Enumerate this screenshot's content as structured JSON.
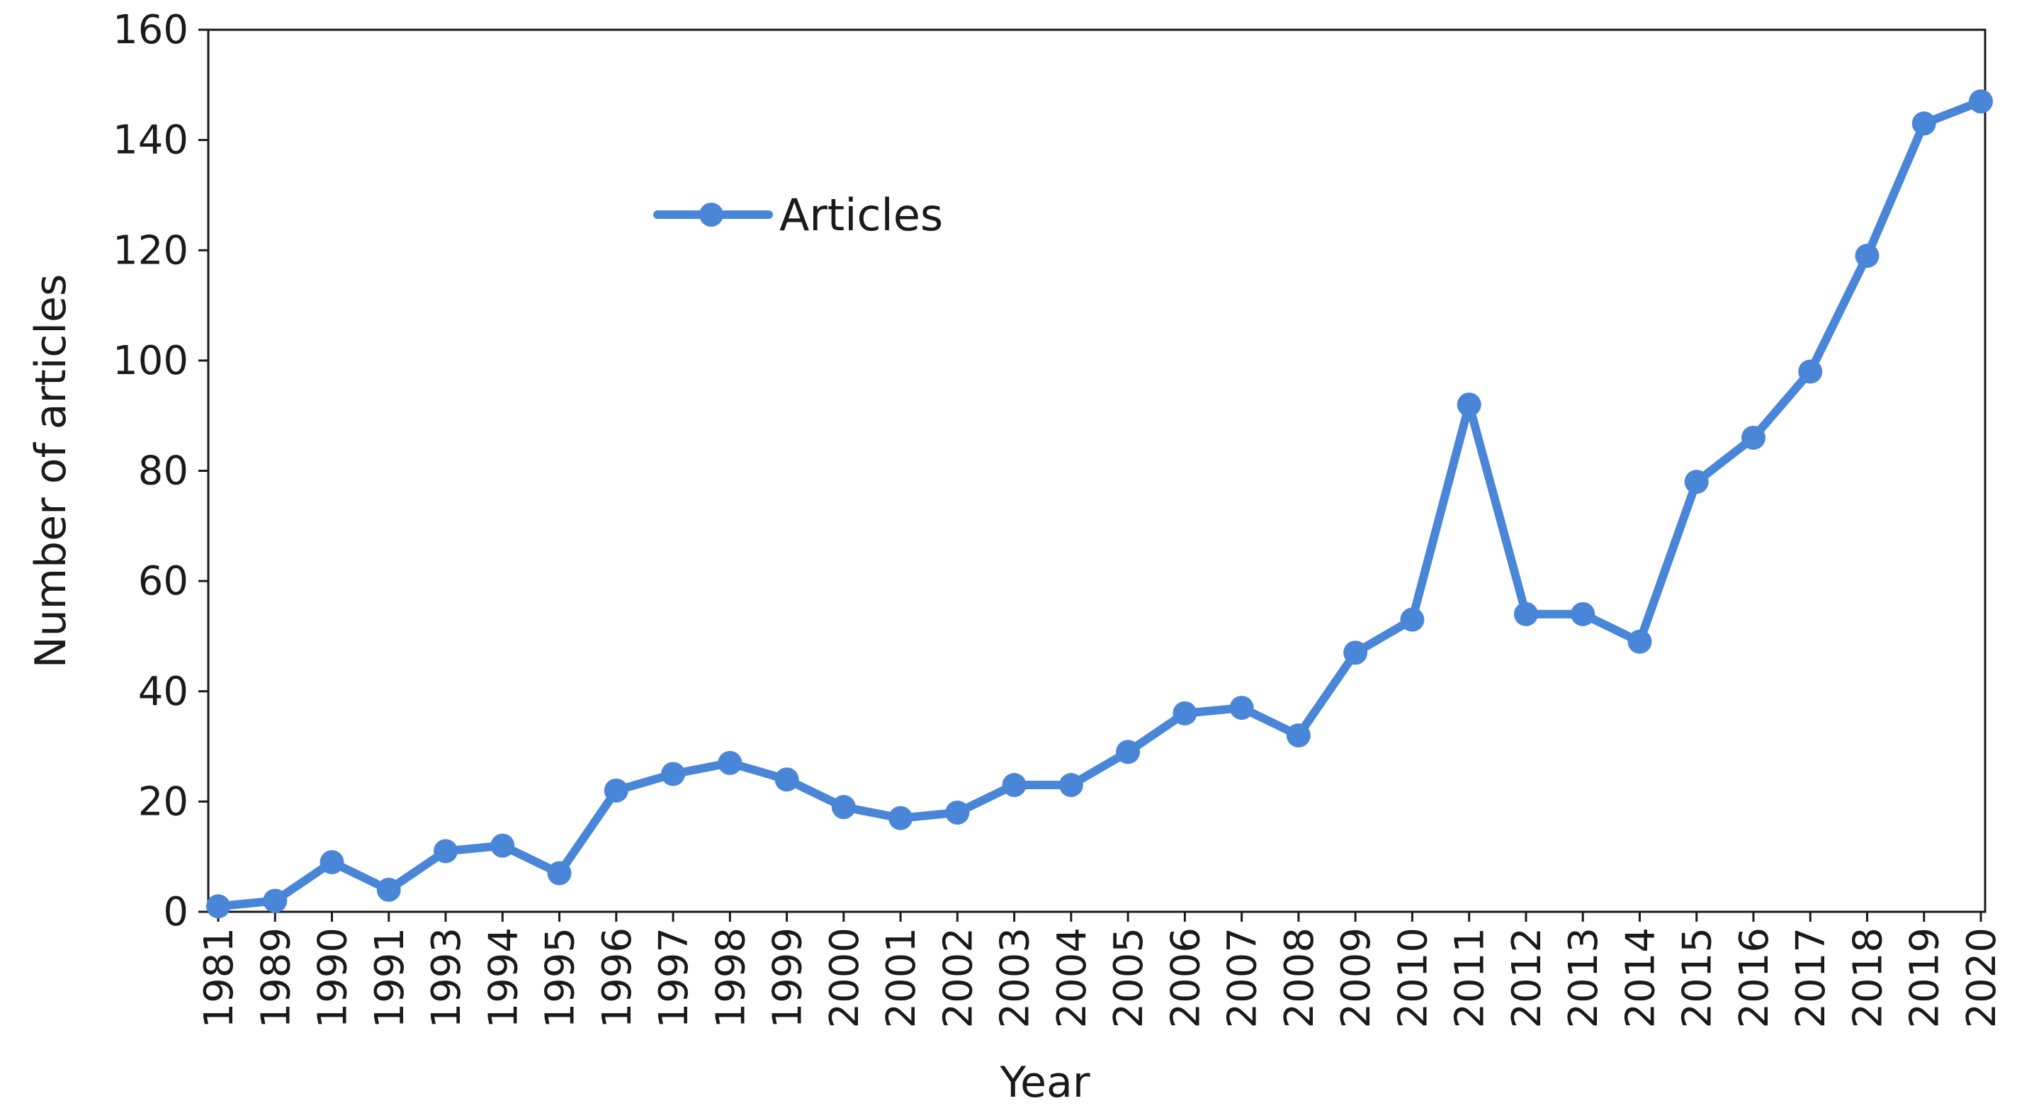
{
  "chart_data": {
    "type": "line",
    "title": "",
    "xlabel": "Year",
    "ylabel": "Number of articles",
    "ylim": [
      0,
      160
    ],
    "yticks": [
      0,
      20,
      40,
      60,
      80,
      100,
      120,
      140,
      160
    ],
    "grid": false,
    "legend_position": "top-left",
    "categories": [
      "1981",
      "1989",
      "1990",
      "1991",
      "1993",
      "1994",
      "1995",
      "1996",
      "1997",
      "1998",
      "1999",
      "2000",
      "2001",
      "2002",
      "2003",
      "2004",
      "2005",
      "2006",
      "2007",
      "2008",
      "2009",
      "2010",
      "2011",
      "2012",
      "2013",
      "2014",
      "2015",
      "2016",
      "2017",
      "2018",
      "2019",
      "2020"
    ],
    "series": [
      {
        "name": "Articles",
        "color": "#4a86d8",
        "values": [
          1,
          2,
          9,
          4,
          11,
          12,
          7,
          22,
          25,
          27,
          24,
          19,
          17,
          18,
          23,
          23,
          29,
          36,
          37,
          32,
          47,
          53,
          92,
          54,
          54,
          49,
          78,
          86,
          98,
          119,
          143,
          147
        ]
      }
    ]
  }
}
